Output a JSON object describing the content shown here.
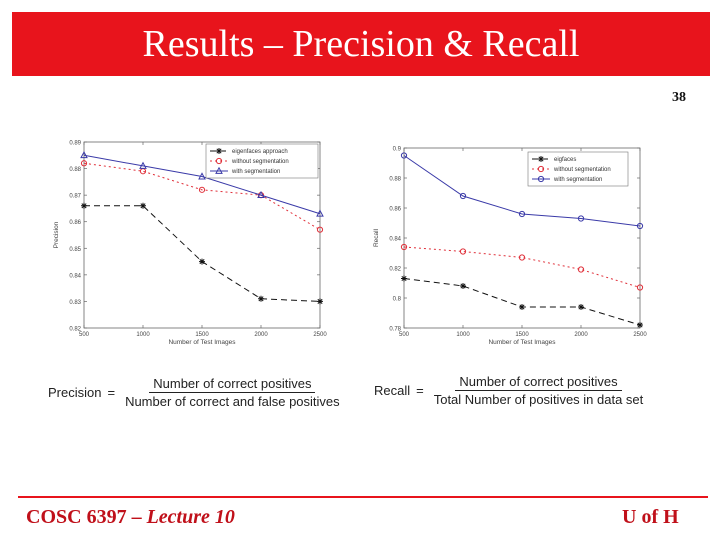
{
  "slide": {
    "title": "Results – Precision & Recall",
    "number": "38",
    "footer_left_prefix": "COSC 6397 – ",
    "footer_left_emph": "Lecture 10",
    "footer_right": "U of H"
  },
  "formulas": {
    "precision_label": "Precision",
    "precision_num": "Number of correct positives",
    "precision_den": "Number of correct and false positives",
    "recall_label": "Recall",
    "recall_num": "Number of correct positives",
    "recall_den": "Total Number of positives in data set"
  },
  "colors": {
    "accent": "#e8141c",
    "eigen": "#111111",
    "without": "#e0303a",
    "with": "#3a3aa8"
  },
  "chart_data": [
    {
      "type": "line",
      "title": "",
      "xlabel": "Number of Test Images",
      "ylabel": "Precision",
      "xlim": [
        500,
        2500
      ],
      "ylim": [
        0.82,
        0.89
      ],
      "xticks": [
        500,
        1000,
        1500,
        2000,
        2500
      ],
      "yticks": [
        0.82,
        0.83,
        0.84,
        0.85,
        0.86,
        0.87,
        0.88,
        0.89
      ],
      "xtick_labels": [
        "500",
        "1000",
        "1500",
        "2000",
        "2500"
      ],
      "ytick_labels": [
        "0.82",
        "0.83",
        "0.84",
        "0.85",
        "0.86",
        "0.87",
        "0.88",
        "0.89"
      ],
      "legend": "top-right",
      "series": [
        {
          "name": "eigenfaces approach",
          "marker": "star",
          "dash": "6,4",
          "color": "#111111",
          "x": [
            500,
            1000,
            1500,
            2000,
            2500
          ],
          "y": [
            0.866,
            0.866,
            0.845,
            0.831,
            0.83
          ]
        },
        {
          "name": "without segmentation",
          "marker": "circle",
          "dash": "2,3",
          "color": "#e0303a",
          "x": [
            500,
            1000,
            1500,
            2000,
            2500
          ],
          "y": [
            0.882,
            0.879,
            0.872,
            0.87,
            0.857
          ]
        },
        {
          "name": "with segmentation",
          "marker": "triangle",
          "dash": "",
          "color": "#3a3aa8",
          "x": [
            500,
            1000,
            1500,
            2000,
            2500
          ],
          "y": [
            0.885,
            0.881,
            0.877,
            0.87,
            0.863
          ]
        }
      ]
    },
    {
      "type": "line",
      "title": "",
      "xlabel": "Number of Test Images",
      "ylabel": "Recall",
      "xlim": [
        500,
        2500
      ],
      "ylim": [
        0.78,
        0.9
      ],
      "xticks": [
        500,
        1000,
        1500,
        2000,
        2500
      ],
      "yticks": [
        0.78,
        0.8,
        0.82,
        0.84,
        0.86,
        0.88,
        0.9
      ],
      "xtick_labels": [
        "500",
        "1000",
        "1500",
        "2000",
        "2500"
      ],
      "ytick_labels": [
        "0.78",
        "0.8",
        "0.82",
        "0.84",
        "0.86",
        "0.88",
        "0.9"
      ],
      "legend": "top-right",
      "series": [
        {
          "name": "eigfaces",
          "marker": "star",
          "dash": "6,4",
          "color": "#111111",
          "x": [
            500,
            1000,
            1500,
            2000,
            2500
          ],
          "y": [
            0.813,
            0.808,
            0.794,
            0.794,
            0.782
          ]
        },
        {
          "name": "without segmentation",
          "marker": "circle",
          "dash": "2,3",
          "color": "#e0303a",
          "x": [
            500,
            1000,
            1500,
            2000,
            2500
          ],
          "y": [
            0.834,
            0.831,
            0.827,
            0.819,
            0.807
          ]
        },
        {
          "name": "with segmentation",
          "marker": "circle",
          "dash": "",
          "color": "#3a3aa8",
          "x": [
            500,
            1000,
            1500,
            2000,
            2500
          ],
          "y": [
            0.895,
            0.868,
            0.856,
            0.853,
            0.848
          ]
        }
      ]
    }
  ]
}
